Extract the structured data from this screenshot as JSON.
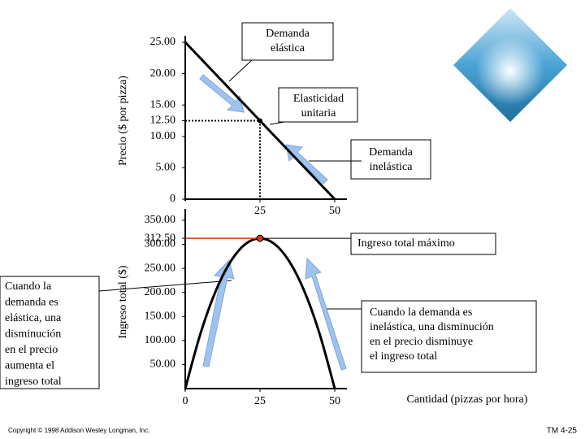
{
  "chart_data": [
    {
      "type": "line",
      "ylabel": "Precio ($ por pizza)",
      "x": [
        0,
        25,
        50
      ],
      "series": [
        {
          "color": "#000000",
          "values": [
            25,
            12.5,
            0
          ]
        }
      ],
      "xlim": [
        0,
        50
      ],
      "xticks": [
        25,
        50
      ],
      "ylim": [
        0,
        25
      ],
      "yticks": [
        0,
        {
          "value": 5,
          "label": "5.00"
        },
        {
          "value": 10,
          "label": "10.00"
        },
        {
          "value": 12.5,
          "label": "12.50"
        },
        {
          "value": 15,
          "label": "15.00"
        },
        {
          "value": 20,
          "label": "20.00"
        },
        {
          "value": 25,
          "label": "25.00"
        }
      ],
      "annotations": [
        {
          "lines": [
            "Demanda",
            "elástica"
          ]
        },
        {
          "lines": [
            "Elasticidad",
            "unitaria"
          ]
        },
        {
          "lines": [
            "Demanda",
            "inelástica"
          ]
        }
      ]
    },
    {
      "type": "line",
      "ylabel": "Ingreso total ($)",
      "xlabel": "Cantidad (pizzas por hora)",
      "x": [
        0,
        5,
        10,
        15,
        20,
        25,
        30,
        35,
        40,
        45,
        50
      ],
      "series": [
        {
          "color": "#000000",
          "values": [
            0,
            112.5,
            200,
            262.5,
            300,
            312.5,
            300,
            262.5,
            200,
            112.5,
            0
          ]
        }
      ],
      "xlim": [
        0,
        50
      ],
      "xticks": [
        0,
        25,
        50
      ],
      "ylim": [
        0,
        360
      ],
      "yticks": [
        {
          "value": 50,
          "label": "50.00"
        },
        {
          "value": 100,
          "label": "100.00"
        },
        {
          "value": 150,
          "label": "150.00"
        },
        {
          "value": 200,
          "label": "200.00"
        },
        {
          "value": 250,
          "label": "250.00"
        },
        {
          "value": 300,
          "label": "300.00"
        },
        {
          "value": 312.5,
          "label": "312.50"
        },
        {
          "value": 350,
          "label": "350.00"
        }
      ],
      "annotations": [
        {
          "lines": [
            "Ingreso total máximo"
          ]
        },
        {
          "lines": [
            "Cuando la demanda es",
            "inelástica, una disminución",
            "en el precio disminuye",
            "el ingreso total"
          ]
        }
      ]
    }
  ],
  "side_note": {
    "lines": [
      "Cuando la",
      "demanda es",
      "elástica, una",
      "disminución",
      "en el precio",
      "aumenta el",
      "ingreso total"
    ]
  },
  "copyright": "Copyright © 1998 Addison Wesley Longman, Inc.",
  "slide_number": "TM 4-25"
}
